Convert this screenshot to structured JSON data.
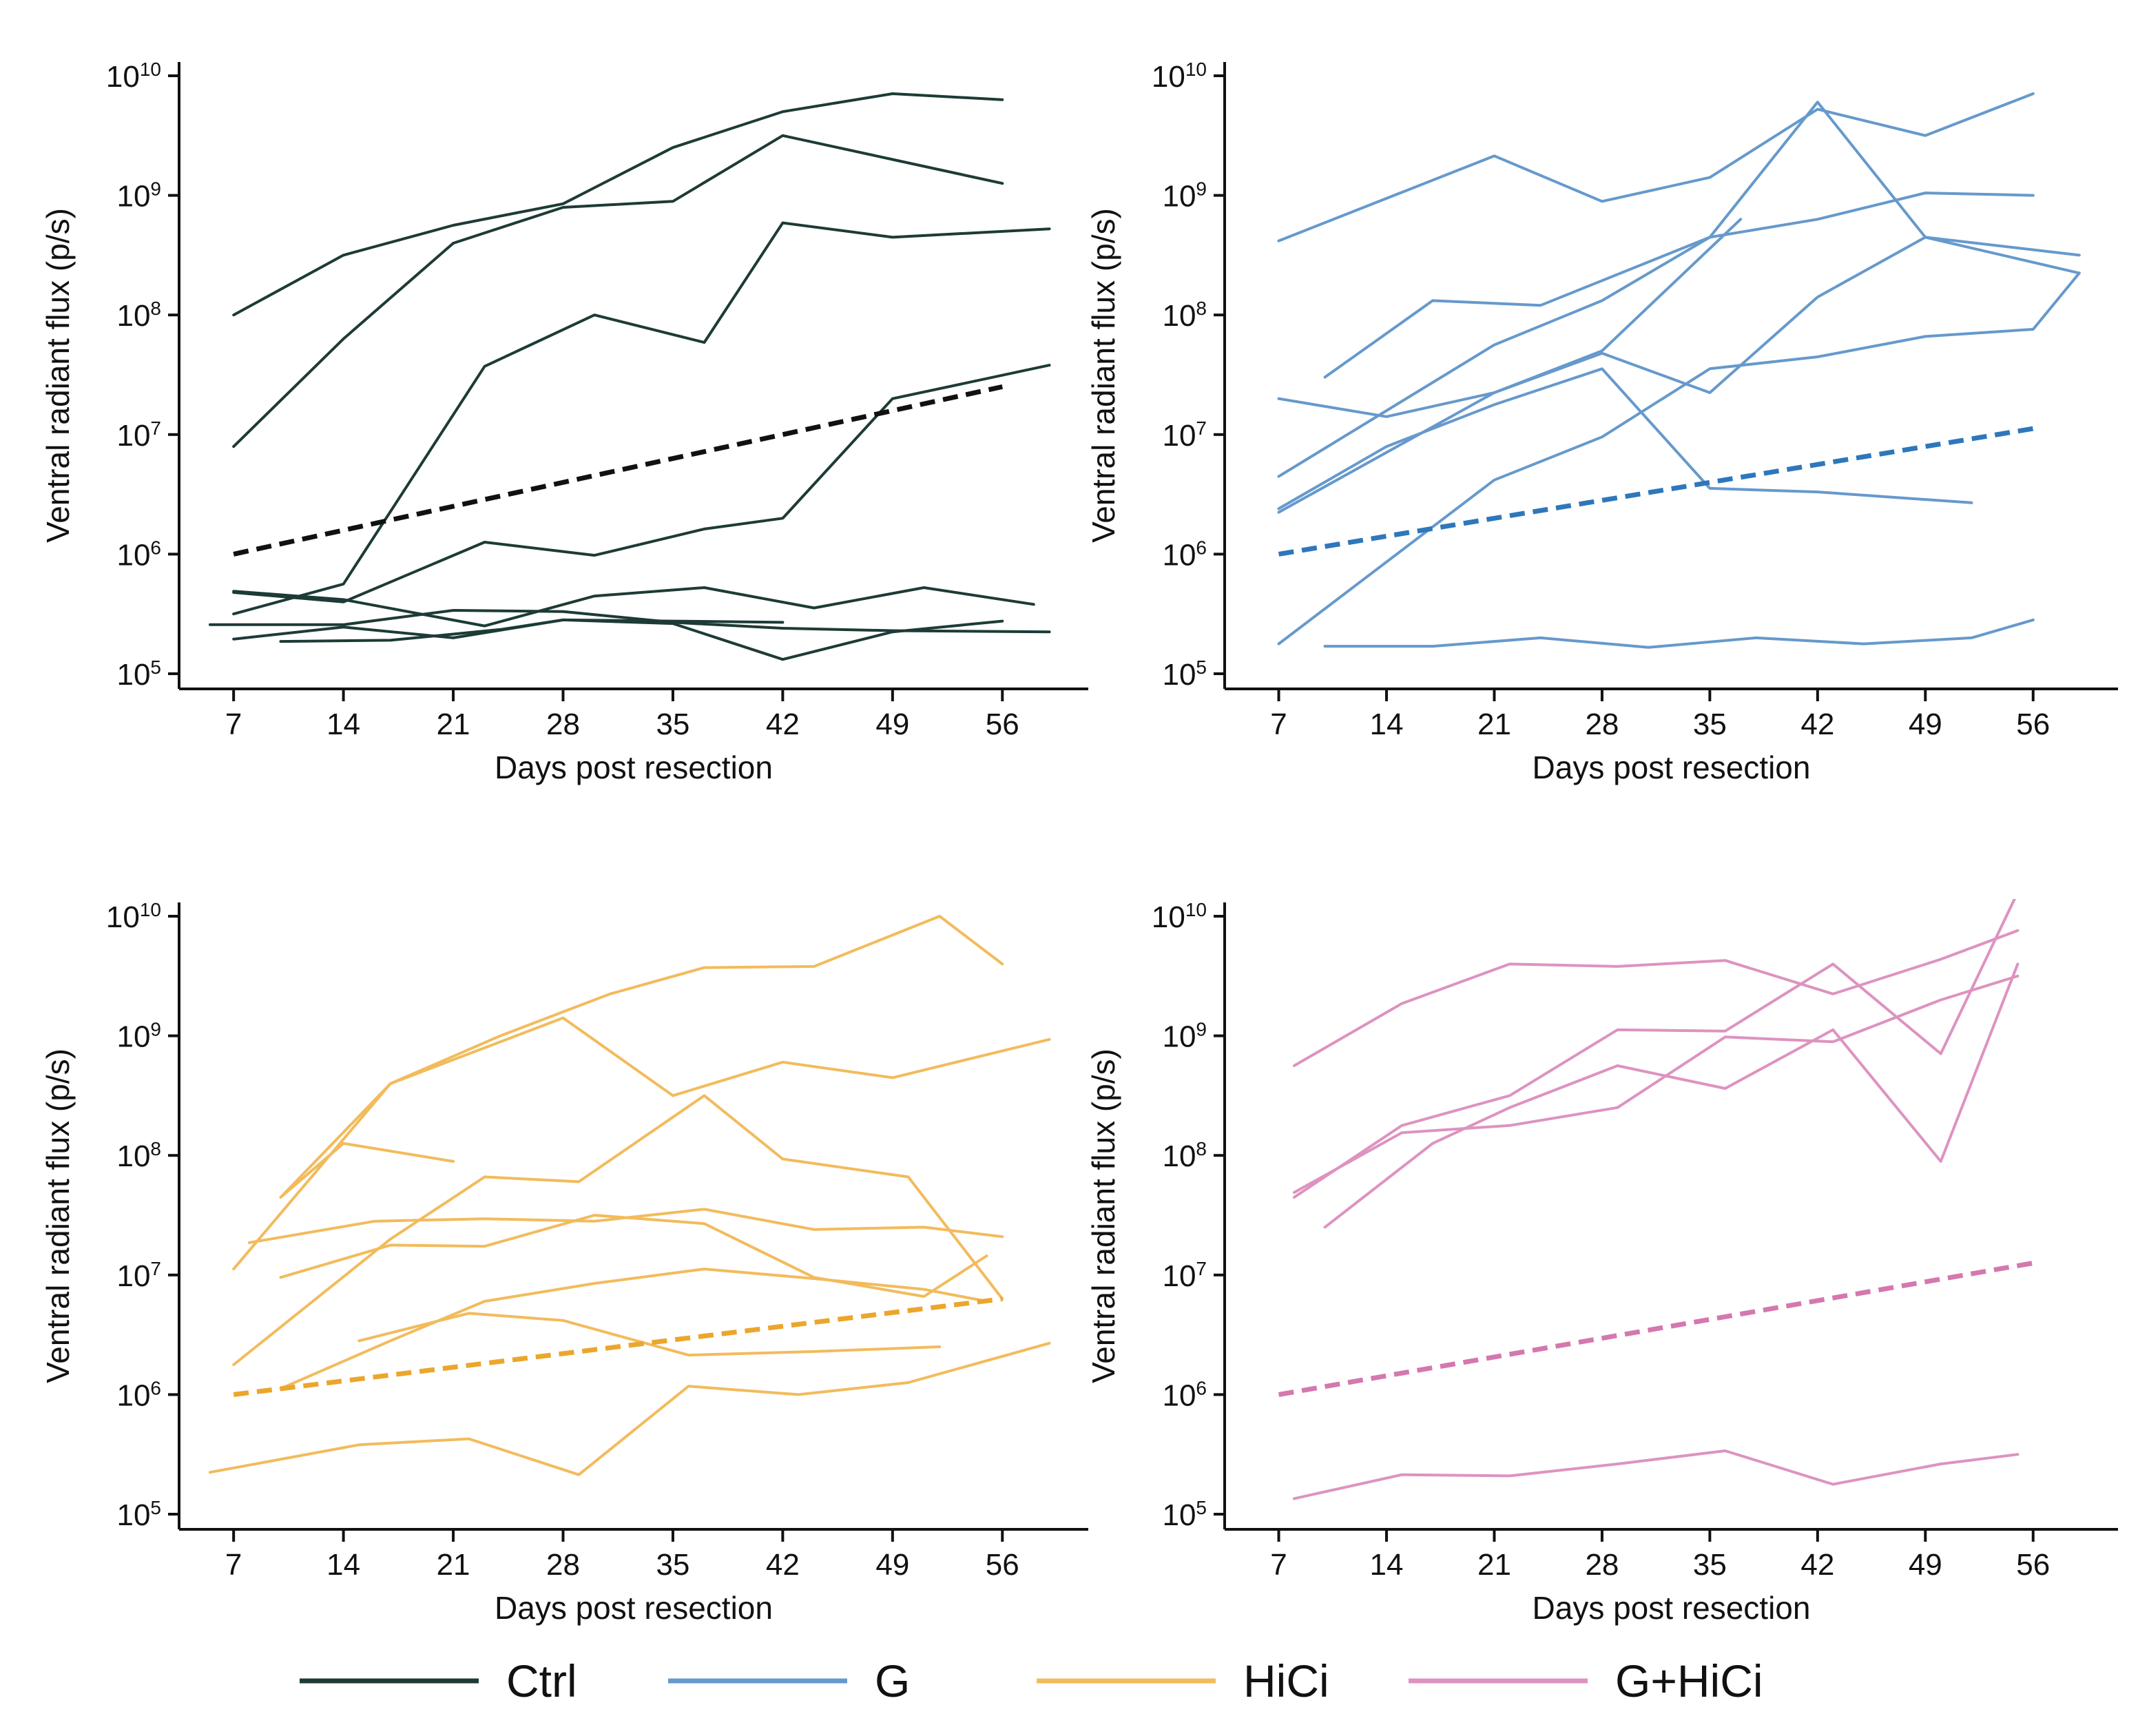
{
  "figure": {
    "x_ticks": [
      7,
      14,
      21,
      28,
      35,
      42,
      49,
      56
    ],
    "y_ticks": [
      {
        "value": 5,
        "base": "10",
        "exp": "5"
      },
      {
        "value": 6,
        "base": "10",
        "exp": "6"
      },
      {
        "value": 7,
        "base": "10",
        "exp": "7"
      },
      {
        "value": 8,
        "base": "10",
        "exp": "8"
      },
      {
        "value": 9,
        "base": "10",
        "exp": "9"
      },
      {
        "value": 10,
        "base": "10",
        "exp": "10"
      }
    ],
    "xlabel": "Days post resection",
    "ylabel": "Ventral radiant flux (p/s)"
  },
  "legend": [
    {
      "label": "Ctrl",
      "color": "#1d3b36"
    },
    {
      "label": "G",
      "color": "#6699cc"
    },
    {
      "label": "HiCi",
      "color": "#f2bb5c"
    },
    {
      "label": "G+HiCi",
      "color": "#dd93c0"
    }
  ],
  "chart_data": [
    {
      "type": "line",
      "panel": "Ctrl",
      "color": "#1d3b36",
      "trend_color": "#111111",
      "xlim": [
        5.5,
        59.5
      ],
      "ylim_log10": [
        4.9,
        10.1
      ],
      "xlabel": "Days post resection",
      "ylabel": "Ventral radiant flux (p/s)",
      "trend": {
        "x": [
          7,
          56
        ],
        "y_log10": [
          6.0,
          7.4
        ]
      },
      "series": [
        {
          "x": [
            7,
            14,
            21,
            28,
            35,
            42,
            49,
            56
          ],
          "y_log10": [
            8.0,
            8.5,
            8.75,
            8.93,
            9.4,
            9.7,
            9.85,
            9.8
          ]
        },
        {
          "x": [
            7,
            14,
            21,
            28,
            35,
            42,
            49,
            56
          ],
          "y_log10": [
            6.9,
            7.8,
            8.6,
            8.9,
            8.95,
            9.5,
            9.3,
            9.1
          ]
        },
        {
          "x": [
            7,
            14,
            23,
            30,
            37,
            42,
            49,
            59
          ],
          "y_log10": [
            5.5,
            5.75,
            7.57,
            8.0,
            7.77,
            8.77,
            8.65,
            8.72
          ]
        },
        {
          "x": [
            7,
            14,
            23,
            30,
            37,
            42,
            49,
            59
          ],
          "y_log10": [
            5.68,
            5.6,
            6.1,
            5.99,
            6.21,
            6.3,
            7.3,
            7.58
          ]
        },
        {
          "x": [
            7,
            14,
            23,
            30,
            37,
            44,
            51,
            58
          ],
          "y_log10": [
            5.69,
            5.62,
            5.4,
            5.65,
            5.72,
            5.55,
            5.72,
            5.58
          ]
        },
        {
          "x": [
            5.5,
            14,
            21,
            28,
            35,
            42,
            49,
            59
          ],
          "y_log10": [
            5.41,
            5.41,
            5.53,
            5.52,
            5.43,
            5.38,
            5.36,
            5.35
          ]
        },
        {
          "x": [
            7,
            14,
            21,
            28,
            35,
            42,
            49,
            56
          ],
          "y_log10": [
            5.29,
            5.39,
            5.3,
            5.45,
            5.42,
            5.12,
            5.35,
            5.44
          ]
        },
        {
          "x": [
            10,
            17,
            24,
            28,
            35,
            42
          ],
          "y_log10": [
            5.27,
            5.28,
            5.37,
            5.45,
            5.44,
            5.43
          ]
        }
      ]
    },
    {
      "type": "line",
      "panel": "G",
      "color": "#6699cc",
      "trend_color": "#2e77bb",
      "xlim": [
        5.5,
        59.5
      ],
      "ylim_log10": [
        4.9,
        10.1
      ],
      "xlabel": "Days post resection",
      "ylabel": "Ventral radiant flux (p/s)",
      "trend": {
        "x": [
          7,
          56
        ],
        "y_log10": [
          6.0,
          7.05
        ]
      },
      "series": [
        {
          "x": [
            7,
            21,
            28,
            35,
            42,
            49,
            56
          ],
          "y_log10": [
            8.62,
            9.33,
            8.95,
            9.15,
            9.72,
            9.5,
            9.85
          ]
        },
        {
          "x": [
            10,
            17,
            24,
            35,
            42,
            49,
            56
          ],
          "y_log10": [
            7.48,
            8.12,
            8.08,
            8.65,
            8.8,
            9.02,
            9.0
          ]
        },
        {
          "x": [
            7,
            21,
            28,
            35,
            42,
            49,
            59
          ],
          "y_log10": [
            6.65,
            7.75,
            8.12,
            8.65,
            9.78,
            8.65,
            8.5
          ]
        },
        {
          "x": [
            7,
            14,
            21,
            28,
            37
          ],
          "y_log10": [
            7.3,
            7.15,
            7.35,
            7.7,
            8.8
          ]
        },
        {
          "x": [
            7,
            14,
            21,
            28,
            35,
            42,
            49,
            59
          ],
          "y_log10": [
            6.35,
            6.85,
            7.35,
            7.68,
            7.35,
            8.15,
            8.65,
            8.35
          ]
        },
        {
          "x": [
            7,
            21,
            28,
            35,
            42,
            49,
            56,
            59
          ],
          "y_log10": [
            5.25,
            6.62,
            6.98,
            7.55,
            7.65,
            7.82,
            7.88,
            8.35
          ]
        },
        {
          "x": [
            7,
            14,
            21,
            28,
            35,
            42,
            52
          ],
          "y_log10": [
            6.38,
            6.9,
            7.25,
            7.55,
            6.55,
            6.52,
            6.43
          ]
        },
        {
          "x": [
            10,
            17,
            24,
            31,
            38,
            45,
            52,
            56
          ],
          "y_log10": [
            5.23,
            5.23,
            5.3,
            5.22,
            5.3,
            5.25,
            5.3,
            5.45
          ]
        }
      ]
    },
    {
      "type": "line",
      "panel": "HiCi",
      "color": "#f2bb5c",
      "trend_color": "#eba62c",
      "xlim": [
        5.5,
        59.5
      ],
      "ylim_log10": [
        4.9,
        10.1
      ],
      "xlabel": "Days post resection",
      "ylabel": "Ventral radiant flux (p/s)",
      "trend": {
        "x": [
          7,
          56
        ],
        "y_log10": [
          6.0,
          6.8
        ]
      },
      "series": [
        {
          "x": [
            10,
            17,
            24,
            31,
            37,
            44,
            52,
            56
          ],
          "y_log10": [
            7.65,
            8.6,
            9.0,
            9.35,
            9.57,
            9.58,
            10.0,
            9.6
          ]
        },
        {
          "x": [
            7,
            17,
            21,
            28,
            35,
            42,
            49,
            59
          ],
          "y_log10": [
            7.05,
            8.6,
            8.8,
            9.15,
            8.5,
            8.78,
            8.65,
            8.97
          ]
        },
        {
          "x": [
            10,
            14,
            21
          ],
          "y_log10": [
            7.65,
            8.1,
            7.95
          ]
        },
        {
          "x": [
            7,
            17,
            23,
            29,
            37,
            42,
            50,
            56
          ],
          "y_log10": [
            6.25,
            7.3,
            7.82,
            7.78,
            8.5,
            7.97,
            7.82,
            6.8
          ]
        },
        {
          "x": [
            8,
            16,
            23,
            30,
            37,
            44,
            51,
            56
          ],
          "y_log10": [
            7.27,
            7.45,
            7.47,
            7.45,
            7.55,
            7.38,
            7.4,
            7.32
          ]
        },
        {
          "x": [
            10,
            17,
            23,
            30,
            37,
            44,
            51,
            55
          ],
          "y_log10": [
            6.98,
            7.25,
            7.24,
            7.5,
            7.43,
            6.98,
            6.82,
            7.16
          ]
        },
        {
          "x": [
            10,
            17,
            23,
            30,
            37,
            44,
            51,
            55
          ],
          "y_log10": [
            6.05,
            6.45,
            6.78,
            6.93,
            7.05,
            6.97,
            6.88,
            6.78
          ]
        },
        {
          "x": [
            15,
            22,
            28,
            36,
            44,
            52
          ],
          "y_log10": [
            6.45,
            6.68,
            6.62,
            6.33,
            6.36,
            6.4
          ]
        },
        {
          "x": [
            5.5,
            15,
            22,
            29,
            36,
            43,
            50,
            59
          ],
          "y_log10": [
            5.35,
            5.58,
            5.63,
            5.33,
            6.07,
            6.0,
            6.1,
            6.43
          ]
        }
      ]
    },
    {
      "type": "line",
      "panel": "G+HiCi",
      "color": "#dd93c0",
      "trend_color": "#d478ae",
      "xlim": [
        5.5,
        59.5
      ],
      "ylim_log10": [
        4.9,
        10.1
      ],
      "xlabel": "Days post resection",
      "ylabel": "Ventral radiant flux (p/s)",
      "trend": {
        "x": [
          7,
          56
        ],
        "y_log10": [
          6.0,
          7.1
        ]
      },
      "series": [
        {
          "x": [
            8,
            15,
            22,
            29,
            36,
            43,
            50,
            55
          ],
          "y_log10": [
            8.75,
            9.27,
            9.6,
            9.58,
            9.63,
            9.35,
            9.64,
            9.88
          ]
        },
        {
          "x": [
            8,
            15,
            22,
            29,
            36,
            43,
            50,
            55
          ],
          "y_log10": [
            7.65,
            8.25,
            8.5,
            9.05,
            9.04,
            9.6,
            8.85,
            10.2
          ]
        },
        {
          "x": [
            10,
            17,
            22,
            29,
            36,
            43,
            50,
            55
          ],
          "y_log10": [
            7.4,
            8.1,
            8.4,
            8.75,
            8.56,
            9.05,
            7.95,
            9.6
          ]
        },
        {
          "x": [
            8,
            15,
            22,
            29,
            36,
            43,
            50,
            55
          ],
          "y_log10": [
            7.69,
            8.19,
            8.25,
            8.4,
            8.99,
            8.95,
            9.3,
            9.5
          ]
        },
        {
          "x": [
            8,
            15,
            22,
            29,
            36,
            43,
            50,
            55
          ],
          "y_log10": [
            5.13,
            5.33,
            5.32,
            5.42,
            5.53,
            5.25,
            5.42,
            5.5
          ]
        }
      ]
    }
  ]
}
